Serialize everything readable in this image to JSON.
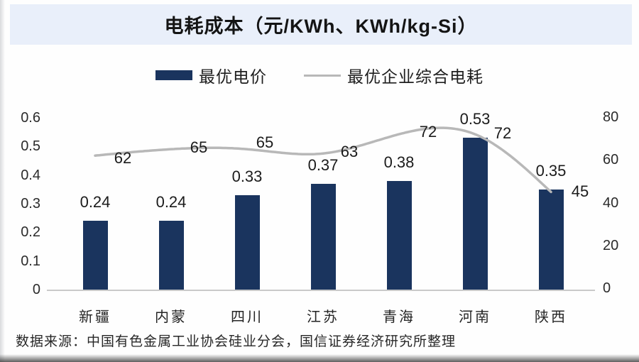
{
  "header": {
    "title": "电耗成本（元/KWh、KWh/kg-Si）"
  },
  "legend": {
    "items": [
      {
        "label": "最优电价",
        "swatch": "bar-swatch-icon"
      },
      {
        "label": "最优企业综合电耗",
        "swatch": "line-swatch-icon"
      }
    ]
  },
  "footer": {
    "source": "数据来源：中国有色金属工业协会硅业分会，国信证券经济研究所整理"
  },
  "colors": {
    "bar": "#1a345e",
    "line": "#b8b8b8",
    "title_band": "#e9effa",
    "axis_line": "#c9c9c9",
    "text": "#1f1f1f"
  },
  "chart_data": {
    "type": "bar+line",
    "title": "电耗成本（元/KWh、KWh/kg-Si）",
    "categories": [
      "新疆",
      "内蒙",
      "四川",
      "江苏",
      "青海",
      "河南",
      "陕西"
    ],
    "series": [
      {
        "name": "最优电价",
        "type": "bar",
        "axis": "left",
        "unit": "元/KWh",
        "values": [
          0.24,
          0.24,
          0.33,
          0.37,
          0.38,
          0.53,
          0.35
        ]
      },
      {
        "name": "最优企业综合电耗",
        "type": "line",
        "axis": "right",
        "unit": "KWh/kg-Si",
        "values": [
          62,
          65,
          65,
          63,
          72,
          72,
          45
        ]
      }
    ],
    "left_axis": {
      "range": [
        0,
        0.6
      ],
      "ticks": [
        "0",
        "0.1",
        "0.2",
        "0.3",
        "0.4",
        "0.5",
        "0.6"
      ]
    },
    "right_axis": {
      "range": [
        0,
        80
      ],
      "ticks": [
        "0",
        "20",
        "40",
        "60",
        "80"
      ]
    },
    "grid": false,
    "legend_position": "top",
    "data_labels": true
  }
}
